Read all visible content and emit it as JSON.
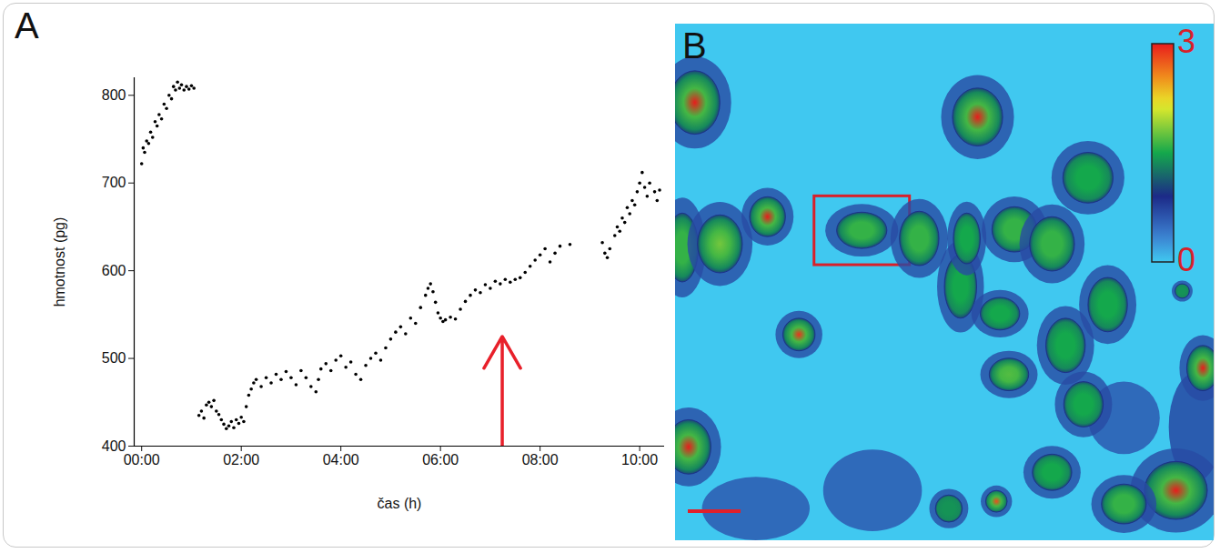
{
  "chart_data": [
    {
      "type": "scatter",
      "label": "A",
      "color": "#000000",
      "x_label": "čas (h)",
      "y_label": "hmotnost (pg)",
      "xlim": [
        -0.15,
        10.5
      ],
      "ylim": [
        400,
        820
      ],
      "xticks": [
        {
          "value": 0,
          "label": "00:00"
        },
        {
          "value": 2,
          "label": "02:00"
        },
        {
          "value": 4,
          "label": "04:00"
        },
        {
          "value": 6,
          "label": "06:00"
        },
        {
          "value": 8,
          "label": "08:00"
        },
        {
          "value": 10,
          "label": "10:00"
        }
      ],
      "yticks": [
        400,
        500,
        600,
        700,
        800
      ],
      "x": [
        0,
        0.03,
        0.06,
        0.1,
        0.14,
        0.18,
        0.22,
        0.27,
        0.31,
        0.35,
        0.4,
        0.45,
        0.5,
        0.55,
        0.6,
        0.64,
        0.68,
        0.72,
        0.76,
        0.8,
        0.85,
        0.9,
        0.95,
        1.0,
        1.05,
        1.15,
        1.2,
        1.25,
        1.3,
        1.35,
        1.4,
        1.45,
        1.5,
        1.55,
        1.6,
        1.65,
        1.7,
        1.75,
        1.8,
        1.85,
        1.9,
        1.95,
        2.0,
        2.05,
        2.1,
        2.15,
        2.2,
        2.25,
        2.3,
        2.4,
        2.5,
        2.6,
        2.7,
        2.8,
        2.9,
        3.0,
        3.1,
        3.2,
        3.3,
        3.4,
        3.5,
        3.55,
        3.6,
        3.7,
        3.8,
        3.9,
        4.0,
        4.1,
        4.2,
        4.3,
        4.4,
        4.5,
        4.6,
        4.7,
        4.8,
        4.9,
        5.0,
        5.1,
        5.2,
        5.3,
        5.4,
        5.5,
        5.6,
        5.7,
        5.75,
        5.8,
        5.85,
        5.9,
        5.95,
        6.0,
        6.05,
        6.1,
        6.2,
        6.3,
        6.4,
        6.5,
        6.6,
        6.7,
        6.8,
        6.9,
        7.0,
        7.1,
        7.2,
        7.3,
        7.4,
        7.5,
        7.6,
        7.7,
        7.8,
        7.9,
        8.0,
        8.1,
        8.2,
        8.3,
        8.4,
        8.6,
        9.25,
        9.3,
        9.35,
        9.4,
        9.5,
        9.55,
        9.6,
        9.65,
        9.7,
        9.75,
        9.8,
        9.85,
        9.9,
        9.95,
        10.0,
        10.05,
        10.1,
        10.15,
        10.2,
        10.3,
        10.35,
        10.4
      ],
      "values": [
        722,
        740,
        735,
        748,
        745,
        758,
        752,
        770,
        765,
        778,
        773,
        790,
        785,
        800,
        796,
        810,
        806,
        815,
        808,
        812,
        806,
        810,
        807,
        811,
        808,
        435,
        440,
        432,
        447,
        450,
        445,
        452,
        440,
        436,
        430,
        425,
        420,
        423,
        428,
        421,
        430,
        426,
        433,
        428,
        445,
        458,
        465,
        472,
        476,
        468,
        478,
        472,
        482,
        476,
        485,
        478,
        470,
        486,
        478,
        468,
        462,
        476,
        488,
        494,
        486,
        498,
        503,
        490,
        496,
        482,
        476,
        492,
        500,
        506,
        498,
        512,
        522,
        530,
        536,
        528,
        546,
        540,
        558,
        572,
        580,
        585,
        576,
        564,
        552,
        546,
        542,
        544,
        547,
        545,
        556,
        565,
        572,
        578,
        575,
        584,
        580,
        588,
        585,
        590,
        587,
        590,
        592,
        598,
        605,
        612,
        618,
        625,
        610,
        620,
        628,
        630,
        632,
        620,
        615,
        625,
        640,
        650,
        645,
        660,
        655,
        672,
        665,
        680,
        675,
        690,
        700,
        712,
        695,
        685,
        700,
        690,
        680,
        692
      ],
      "annotations": [
        {
          "type": "arrow",
          "x": 7.24,
          "y": [
            400,
            525
          ],
          "color": "#e8202a"
        }
      ]
    },
    {
      "type": "image",
      "label": "B",
      "xlim": [
        0,
        600
      ],
      "ylim": [
        0,
        570
      ],
      "colorbar": {
        "range": [
          0,
          3
        ],
        "ticks": [
          0,
          3
        ]
      },
      "cells": [
        {
          "x": 90,
          "y": 535,
          "rx": 60,
          "ry": 35,
          "peak": 0.6
        },
        {
          "x": 220,
          "y": 515,
          "rx": 55,
          "ry": 45,
          "peak": 0.6
        },
        {
          "x": 500,
          "y": 435,
          "rx": 40,
          "ry": 40,
          "peak": 0.6
        },
        {
          "x": 580,
          "y": 445,
          "rx": 30,
          "ry": 60,
          "peak": 0.7
        },
        {
          "x": 22,
          "y": 87,
          "rx": 28,
          "ry": 35,
          "peak": 3
        },
        {
          "x": 103,
          "y": 213,
          "rx": 20,
          "ry": 22,
          "peak": 3
        },
        {
          "x": 8,
          "y": 247,
          "rx": 18,
          "ry": 38,
          "peak": 1.6
        },
        {
          "x": 50,
          "y": 243,
          "rx": 25,
          "ry": 32,
          "peak": 1.8
        },
        {
          "x": 208,
          "y": 228,
          "rx": 28,
          "ry": 20,
          "peak": 1.6,
          "highlight": true
        },
        {
          "x": 272,
          "y": 237,
          "rx": 22,
          "ry": 30,
          "peak": 1.6
        },
        {
          "x": 337,
          "y": 103,
          "rx": 28,
          "ry": 32,
          "peak": 3
        },
        {
          "x": 318,
          "y": 290,
          "rx": 18,
          "ry": 35,
          "peak": 1.5
        },
        {
          "x": 325,
          "y": 237,
          "rx": 15,
          "ry": 28,
          "peak": 1.5
        },
        {
          "x": 378,
          "y": 227,
          "rx": 25,
          "ry": 25,
          "peak": 1.6
        },
        {
          "x": 420,
          "y": 243,
          "rx": 25,
          "ry": 30,
          "peak": 1.6
        },
        {
          "x": 460,
          "y": 170,
          "rx": 28,
          "ry": 28,
          "peak": 1.5
        },
        {
          "x": 362,
          "y": 320,
          "rx": 22,
          "ry": 18,
          "peak": 1.5
        },
        {
          "x": 435,
          "y": 355,
          "rx": 22,
          "ry": 30,
          "peak": 1.5
        },
        {
          "x": 482,
          "y": 310,
          "rx": 22,
          "ry": 30,
          "peak": 1.5
        },
        {
          "x": 138,
          "y": 343,
          "rx": 18,
          "ry": 18,
          "peak": 2.9
        },
        {
          "x": 372,
          "y": 387,
          "rx": 22,
          "ry": 18,
          "peak": 1.7
        },
        {
          "x": 455,
          "y": 420,
          "rx": 22,
          "ry": 25,
          "peak": 1.5
        },
        {
          "x": 565,
          "y": 295,
          "rx": 8,
          "ry": 8,
          "peak": 1.4
        },
        {
          "x": 588,
          "y": 380,
          "rx": 18,
          "ry": 25,
          "peak": 3
        },
        {
          "x": 558,
          "y": 515,
          "rx": 35,
          "ry": 32,
          "peak": 3
        },
        {
          "x": 500,
          "y": 530,
          "rx": 25,
          "ry": 22,
          "peak": 1.6
        },
        {
          "x": 420,
          "y": 495,
          "rx": 22,
          "ry": 20,
          "peak": 1.5
        },
        {
          "x": 358,
          "y": 527,
          "rx": 12,
          "ry": 12,
          "peak": 2.8
        },
        {
          "x": 15,
          "y": 467,
          "rx": 25,
          "ry": 30,
          "peak": 3
        },
        {
          "x": 305,
          "y": 535,
          "rx": 15,
          "ry": 15,
          "peak": 1.4
        }
      ]
    }
  ]
}
